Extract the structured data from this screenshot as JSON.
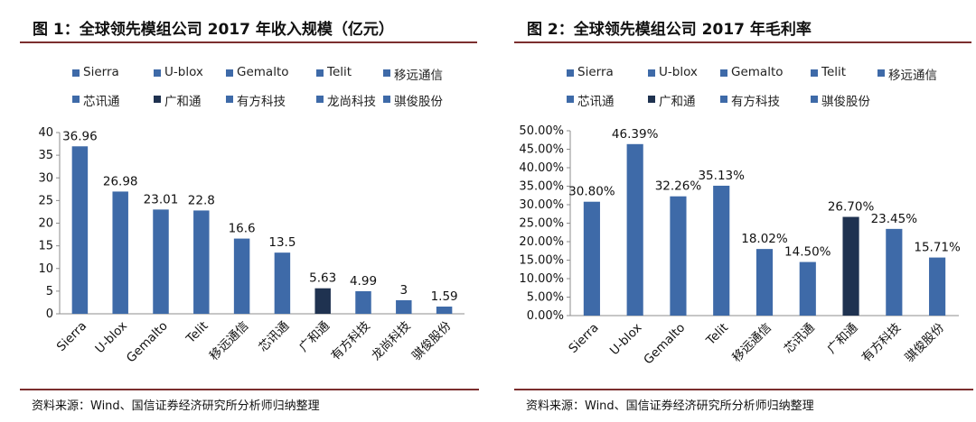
{
  "charts": [
    {
      "title": "图 1：全球领先模组公司 2017 年收入规模（亿元）",
      "source": "资料来源：Wind、国信证券经济研究所分析师归纳整理",
      "legend": [
        "Sierra",
        "U-blox",
        "Gemalto",
        "Telit",
        "移远通信",
        "芯讯通",
        "广和通",
        "有方科技",
        "龙尚科技",
        "骐俊股份"
      ],
      "legend_colors": [
        "#3e6aa8",
        "#3e6aa8",
        "#3e6aa8",
        "#3e6aa8",
        "#3e6aa8",
        "#3e6aa8",
        "#1f3250",
        "#3e6aa8",
        "#3e6aa8",
        "#3e6aa8"
      ]
    },
    {
      "title": "图 2：全球领先模组公司 2017 年毛利率",
      "source": "资料来源：Wind、国信证券经济研究所分析师归纳整理",
      "legend": [
        "Sierra",
        "U-blox",
        "Gemalto",
        "Telit",
        "移远通信",
        "芯讯通",
        "广和通",
        "有方科技",
        "骐俊股份"
      ],
      "legend_colors": [
        "#3e6aa8",
        "#3e6aa8",
        "#3e6aa8",
        "#3e6aa8",
        "#3e6aa8",
        "#3e6aa8",
        "#1f3250",
        "#3e6aa8",
        "#3e6aa8"
      ]
    }
  ],
  "chart_data": [
    {
      "type": "bar",
      "title": "图 1：全球领先模组公司 2017 年收入规模（亿元）",
      "categories": [
        "Sierra",
        "U-blox",
        "Gemalto",
        "Telit",
        "移远通信",
        "芯讯通",
        "广和通",
        "有方科技",
        "龙尚科技",
        "骐俊股份"
      ],
      "values": [
        36.96,
        26.98,
        23.01,
        22.8,
        16.6,
        13.5,
        5.63,
        4.99,
        3,
        1.59
      ],
      "value_labels": [
        "36.96",
        "26.98",
        "23.01",
        "22.8",
        "16.6",
        "13.5",
        "5.63",
        "4.99",
        "3",
        "1.59"
      ],
      "colors": [
        "#3e6aa8",
        "#3e6aa8",
        "#3e6aa8",
        "#3e6aa8",
        "#3e6aa8",
        "#3e6aa8",
        "#1f3250",
        "#3e6aa8",
        "#3e6aa8",
        "#3e6aa8"
      ],
      "ylim": [
        0,
        40
      ],
      "yticks": [
        0,
        5,
        10,
        15,
        20,
        25,
        30,
        35,
        40
      ],
      "ytick_labels": [
        "0",
        "5",
        "10",
        "15",
        "20",
        "25",
        "30",
        "35",
        "40"
      ],
      "xlabel": "",
      "ylabel": "",
      "grid": false,
      "legend_position": "top"
    },
    {
      "type": "bar",
      "title": "图 2：全球领先模组公司 2017 年毛利率",
      "categories": [
        "Sierra",
        "U-blox",
        "Gemalto",
        "Telit",
        "移远通信",
        "芯讯通",
        "广和通",
        "有方科技",
        "骐俊股份"
      ],
      "values": [
        30.8,
        46.39,
        32.26,
        35.13,
        18.02,
        14.5,
        26.7,
        23.45,
        15.71
      ],
      "value_labels": [
        "30.80%",
        "46.39%",
        "32.26%",
        "35.13%",
        "18.02%",
        "14.50%",
        "26.70%",
        "23.45%",
        "15.71%"
      ],
      "colors": [
        "#3e6aa8",
        "#3e6aa8",
        "#3e6aa8",
        "#3e6aa8",
        "#3e6aa8",
        "#3e6aa8",
        "#1f3250",
        "#3e6aa8",
        "#3e6aa8"
      ],
      "ylim": [
        0,
        50
      ],
      "yticks": [
        0,
        5,
        10,
        15,
        20,
        25,
        30,
        35,
        40,
        45,
        50
      ],
      "ytick_labels": [
        "0.00%",
        "5.00%",
        "10.00%",
        "15.00%",
        "20.00%",
        "25.00%",
        "30.00%",
        "35.00%",
        "40.00%",
        "45.00%",
        "50.00%"
      ],
      "xlabel": "",
      "ylabel": "",
      "grid": false,
      "legend_position": "top"
    }
  ]
}
